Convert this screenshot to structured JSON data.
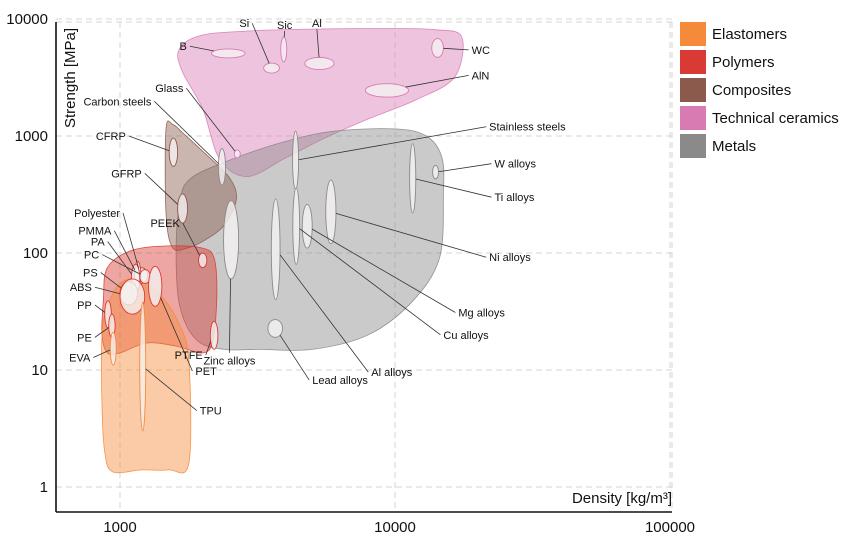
{
  "chart_data": {
    "type": "scatter",
    "xlabel": "Density [kg/m³]",
    "ylabel": "Strength [MPa]",
    "xscale": "log",
    "yscale": "log",
    "xlim": [
      580,
      110000
    ],
    "ylim": [
      0.75,
      10000
    ],
    "x_ticks": [
      "1000",
      "10000",
      "100000"
    ],
    "y_ticks": [
      "1",
      "10",
      "100",
      "1000",
      "10000"
    ],
    "grid": true,
    "legend_position": "right",
    "legend": [
      {
        "name": "Elastomers",
        "color": "#f58b3a"
      },
      {
        "name": "Polymers",
        "color": "#d93a33"
      },
      {
        "name": "Composites",
        "color": "#8c5a4d"
      },
      {
        "name": "Technical ceramics",
        "color": "#d97bb3"
      },
      {
        "name": "Metals",
        "color": "#8a8a8a"
      }
    ],
    "families": [
      {
        "name": "Technical ceramics",
        "color": "#d97bb3",
        "boundary": [
          [
            1640,
            5500
          ],
          [
            1950,
            7200
          ],
          [
            2900,
            7900
          ],
          [
            5000,
            8200
          ],
          [
            9000,
            8300
          ],
          [
            14000,
            8100
          ],
          [
            17500,
            7000
          ],
          [
            16500,
            3200
          ],
          [
            12000,
            2050
          ],
          [
            8000,
            1400
          ],
          [
            5500,
            950
          ],
          [
            4000,
            650
          ],
          [
            2900,
            450
          ],
          [
            2300,
            640
          ],
          [
            2000,
            1700
          ],
          [
            1680,
            3600
          ]
        ]
      },
      {
        "name": "Metals",
        "color": "#8a8a8a",
        "boundary": [
          [
            1650,
            270
          ],
          [
            1800,
            430
          ],
          [
            2500,
            620
          ],
          [
            4000,
            900
          ],
          [
            6000,
            1100
          ],
          [
            10000,
            1150
          ],
          [
            13000,
            1000
          ],
          [
            14800,
            660
          ],
          [
            15000,
            320
          ],
          [
            14500,
            90
          ],
          [
            11500,
            38
          ],
          [
            8000,
            20
          ],
          [
            5000,
            15
          ],
          [
            3200,
            15
          ],
          [
            2400,
            15
          ],
          [
            1900,
            18
          ],
          [
            1650,
            35
          ],
          [
            1600,
            100
          ]
        ]
      },
      {
        "name": "Composites",
        "color": "#8c5a4d",
        "boundary": [
          [
            1470,
            1150
          ],
          [
            1560,
            1250
          ],
          [
            1700,
            1050
          ],
          [
            2050,
            700
          ],
          [
            2500,
            440
          ],
          [
            2650,
            290
          ],
          [
            2400,
            175
          ],
          [
            2050,
            130
          ],
          [
            1750,
            110
          ],
          [
            1550,
            112
          ],
          [
            1470,
            220
          ]
        ]
      },
      {
        "name": "Polymers",
        "color": "#d93a33",
        "boundary": [
          [
            870,
            40
          ],
          [
            900,
            75
          ],
          [
            1100,
            105
          ],
          [
            1500,
            115
          ],
          [
            2000,
            110
          ],
          [
            2200,
            90
          ],
          [
            2250,
            45
          ],
          [
            2180,
            18
          ],
          [
            2000,
            14
          ],
          [
            1600,
            16
          ],
          [
            1250,
            17
          ],
          [
            1000,
            14
          ],
          [
            900,
            14
          ],
          [
            860,
            20
          ]
        ]
      },
      {
        "name": "Elastomers",
        "color": "#f58b3a",
        "boundary": [
          [
            860,
            5
          ],
          [
            880,
            2
          ],
          [
            940,
            1.35
          ],
          [
            1200,
            1.4
          ],
          [
            1500,
            1.4
          ],
          [
            1780,
            1.6
          ],
          [
            1780,
            12
          ],
          [
            1650,
            24
          ],
          [
            1450,
            40
          ],
          [
            1200,
            60
          ],
          [
            1000,
            55
          ],
          [
            900,
            35
          ],
          [
            860,
            20
          ]
        ]
      }
    ],
    "materials": [
      {
        "name": "B",
        "family": "Technical ceramics",
        "x": [
          2150,
          2850
        ],
        "y": [
          4650,
          5550
        ],
        "label": [
          1750,
          5850
        ]
      },
      {
        "name": "Si",
        "family": "Technical ceramics",
        "x": [
          3330,
          3800
        ],
        "y": [
          3450,
          4200
        ],
        "label": [
          2950,
          9200
        ]
      },
      {
        "name": "Sic",
        "family": "Technical ceramics",
        "x": [
          3880,
          4000
        ],
        "y": [
          4300,
          7000
        ],
        "label": [
          3970,
          8900
        ]
      },
      {
        "name": "Al",
        "family": "Technical ceramics",
        "x": [
          4700,
          6000
        ],
        "y": [
          3700,
          4700
        ],
        "label": [
          5200,
          9200
        ]
      },
      {
        "name": "WC",
        "family": "Technical ceramics",
        "x": [
          13600,
          15000
        ],
        "y": [
          4700,
          6800
        ],
        "label": [
          19000,
          5450
        ]
      },
      {
        "name": "AlN",
        "family": "Technical ceramics",
        "x": [
          7800,
          11200
        ],
        "y": [
          2150,
          2800
        ],
        "label": [
          19000,
          3300
        ]
      },
      {
        "name": "Glass",
        "family": "Technical ceramics",
        "x": [
          2620,
          2720
        ],
        "y": [
          650,
          760
        ],
        "label": [
          1700,
          2560
        ]
      },
      {
        "name": "Carbon steels",
        "family": "Metals",
        "x": [
          2280,
          2420
        ],
        "y": [
          380,
          780
        ],
        "label": [
          1300,
          1980
        ]
      },
      {
        "name": "Stainless steels",
        "family": "Metals",
        "x": [
          4300,
          4400
        ],
        "y": [
          350,
          1100
        ],
        "label": [
          22000,
          1200
        ]
      },
      {
        "name": "W alloys",
        "family": "Metals",
        "x": [
          13700,
          14400
        ],
        "y": [
          430,
          560
        ],
        "label": [
          23000,
          580
        ]
      },
      {
        "name": "Ti alloys",
        "family": "Metals",
        "x": [
          11300,
          11900
        ],
        "y": [
          220,
          860
        ],
        "label": [
          23000,
          300
        ]
      },
      {
        "name": "Ni alloys",
        "family": "Metals",
        "x": [
          5600,
          6100
        ],
        "y": [
          120,
          420
        ],
        "label": [
          22000,
          92
        ]
      },
      {
        "name": "Mg alloys",
        "family": "Metals",
        "x": [
          4600,
          5000
        ],
        "y": [
          110,
          260
        ],
        "label": [
          17000,
          31
        ]
      },
      {
        "name": "Cu alloys",
        "family": "Metals",
        "x": [
          4250,
          4500
        ],
        "y": [
          80,
          360
        ],
        "label": [
          15000,
          20
        ]
      },
      {
        "name": "Al alloys",
        "family": "Metals",
        "x": [
          3550,
          3820
        ],
        "y": [
          40,
          290
        ],
        "label": [
          8200,
          9.6
        ]
      },
      {
        "name": "Lead alloys",
        "family": "Metals",
        "x": [
          3450,
          3900
        ],
        "y": [
          19,
          27
        ],
        "label": [
          5000,
          8.2
        ]
      },
      {
        "name": "Zinc alloys",
        "family": "Metals",
        "x": [
          2380,
          2700
        ],
        "y": [
          60,
          280
        ],
        "label": [
          2500,
          12
        ]
      },
      {
        "name": "CFRP",
        "family": "Composites",
        "x": [
          1510,
          1620
        ],
        "y": [
          550,
          960
        ],
        "label": [
          1050,
          1000
        ]
      },
      {
        "name": "GFRP",
        "family": "Composites",
        "x": [
          1620,
          1760
        ],
        "y": [
          180,
          320
        ],
        "label": [
          1200,
          480
        ]
      },
      {
        "name": "PEEK",
        "family": "Polymers",
        "x": [
          1930,
          2070
        ],
        "y": [
          75,
          100
        ],
        "label": [
          1650,
          180
        ]
      },
      {
        "name": "Polyester",
        "family": "Polymers",
        "x": [
          1130,
          1260
        ],
        "y": [
          55,
          75
        ],
        "label": [
          1000,
          220
        ]
      },
      {
        "name": "PMMA",
        "family": "Polymers",
        "x": [
          1130,
          1190
        ],
        "y": [
          50,
          85
        ],
        "label": [
          930,
          155
        ]
      },
      {
        "name": "PA",
        "family": "Polymers",
        "x": [
          1100,
          1180
        ],
        "y": [
          45,
          80
        ],
        "label": [
          880,
          125
        ]
      },
      {
        "name": "PC",
        "family": "Polymers",
        "x": [
          1180,
          1290
        ],
        "y": [
          55,
          72
        ],
        "label": [
          840,
          97
        ]
      },
      {
        "name": "PS",
        "family": "Polymers",
        "x": [
          1000,
          1160
        ],
        "y": [
          36,
          57
        ],
        "label": [
          830,
          68
        ]
      },
      {
        "name": "ABS",
        "family": "Polymers",
        "x": [
          1000,
          1230
        ],
        "y": [
          30,
          60
        ],
        "label": [
          790,
          51
        ]
      },
      {
        "name": "PP",
        "family": "Polymers",
        "x": [
          880,
          930
        ],
        "y": [
          23,
          39
        ],
        "label": [
          790,
          36
        ]
      },
      {
        "name": "PE",
        "family": "Polymers",
        "x": [
          910,
          960
        ],
        "y": [
          19,
          30
        ],
        "label": [
          790,
          19
        ]
      },
      {
        "name": "EVA",
        "family": "Elastomers",
        "x": [
          930,
          960
        ],
        "y": [
          11,
          21
        ],
        "label": [
          780,
          12.8
        ]
      },
      {
        "name": "TPU",
        "family": "Elastomers",
        "x": [
          1180,
          1240
        ],
        "y": [
          3,
          38
        ],
        "label": [
          1950,
          4.5
        ]
      },
      {
        "name": "PET",
        "family": "Polymers",
        "x": [
          1270,
          1420
        ],
        "y": [
          35,
          77
        ],
        "label": [
          1880,
          9.8
        ]
      },
      {
        "name": "PTFE",
        "family": "Polymers",
        "x": [
          2130,
          2270
        ],
        "y": [
          15,
          26
        ],
        "label": [
          2000,
          13.4
        ]
      }
    ]
  }
}
